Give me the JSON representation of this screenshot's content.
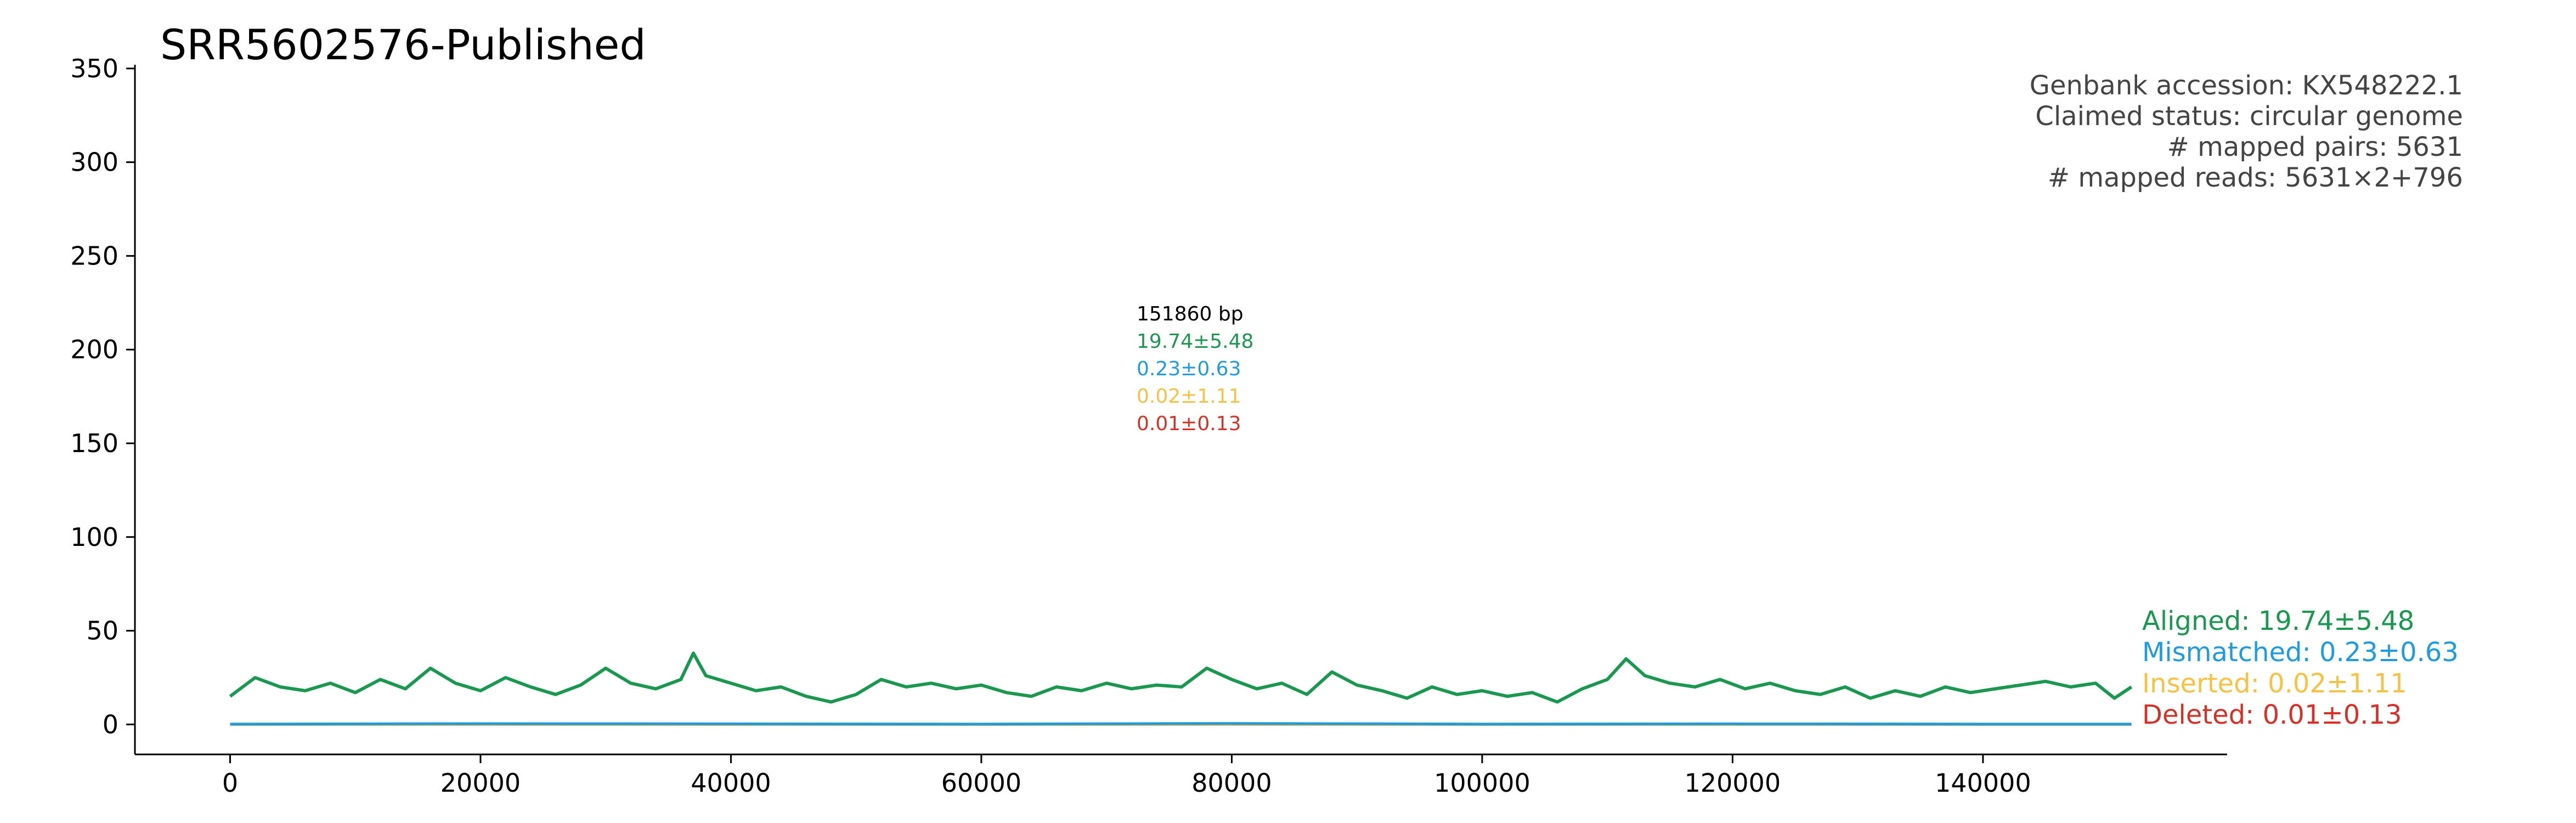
{
  "chart_data": {
    "type": "line",
    "title": "SRR5602576-Published",
    "xlabel": "",
    "ylabel": "",
    "xlim": [
      -7600,
      159500
    ],
    "ylim": [
      -16,
      352
    ],
    "x_ticks": [
      0,
      20000,
      40000,
      60000,
      80000,
      100000,
      120000,
      140000
    ],
    "y_ticks": [
      0,
      50,
      100,
      150,
      200,
      250,
      300,
      350
    ],
    "genome_length": 151860,
    "info": [
      "Genbank accession: KX548222.1",
      "Claimed status: circular genome",
      "# mapped pairs: 5631",
      "# mapped reads: 5631×2+796"
    ],
    "center_stats": {
      "length_label": "151860 bp",
      "aligned": "19.74±5.48",
      "mismatched": "0.23±0.63",
      "inserted": "0.02±1.11",
      "deleted": "0.01±0.13"
    },
    "legend_position": "right",
    "series": [
      {
        "name": "Aligned",
        "label": "Aligned: 19.74±5.48",
        "color": "#1a9850",
        "mean": 19.74,
        "std": 5.48,
        "x": [
          0,
          2000,
          4000,
          6000,
          8000,
          10000,
          12000,
          14000,
          16000,
          18000,
          20000,
          22000,
          24000,
          26000,
          28000,
          30000,
          32000,
          34000,
          36000,
          37000,
          38000,
          40000,
          42000,
          44000,
          46000,
          48000,
          50000,
          52000,
          54000,
          56000,
          58000,
          60000,
          62000,
          64000,
          66000,
          68000,
          70000,
          72000,
          74000,
          76000,
          78000,
          80000,
          82000,
          84000,
          86000,
          88000,
          90000,
          92000,
          94000,
          96000,
          98000,
          100000,
          102000,
          104000,
          106000,
          108000,
          110000,
          111500,
          113000,
          115000,
          117000,
          119000,
          121000,
          123000,
          125000,
          127000,
          129000,
          131000,
          133000,
          135000,
          137000,
          139000,
          141000,
          143000,
          145000,
          147000,
          149000,
          150500,
          151860
        ],
        "values": [
          15,
          25,
          20,
          18,
          22,
          17,
          24,
          19,
          30,
          22,
          18,
          25,
          20,
          16,
          21,
          30,
          22,
          19,
          24,
          38,
          26,
          22,
          18,
          20,
          15,
          12,
          16,
          24,
          20,
          22,
          19,
          21,
          17,
          15,
          20,
          18,
          22,
          19,
          21,
          20,
          30,
          24,
          19,
          22,
          16,
          28,
          21,
          18,
          14,
          20,
          16,
          18,
          15,
          17,
          12,
          19,
          24,
          35,
          26,
          22,
          20,
          24,
          19,
          22,
          18,
          16,
          20,
          14,
          18,
          15,
          20,
          17,
          19,
          21,
          23,
          20,
          22,
          14,
          20
        ]
      },
      {
        "name": "Mismatched",
        "label": "Mismatched: 0.23±0.63",
        "color": "#1f9be0",
        "mean": 0.23,
        "std": 0.63,
        "x": [
          0,
          20000,
          40000,
          60000,
          80000,
          100000,
          120000,
          140000,
          151860
        ],
        "values": [
          0.2,
          0.4,
          0.3,
          0.2,
          0.5,
          0.2,
          0.3,
          0.2,
          0.2
        ]
      },
      {
        "name": "Inserted",
        "label": "Inserted: 0.02±1.11",
        "color": "#f7c143",
        "mean": 0.02,
        "std": 1.11,
        "x": [
          0,
          40000,
          80000,
          120000,
          151860
        ],
        "values": [
          0,
          0,
          0,
          0,
          0
        ]
      },
      {
        "name": "Deleted",
        "label": "Deleted: 0.01±0.13",
        "color": "#d73027",
        "mean": 0.01,
        "std": 0.13,
        "x": [
          0,
          40000,
          80000,
          120000,
          151860
        ],
        "values": [
          0,
          0,
          0,
          0,
          0
        ]
      }
    ]
  }
}
